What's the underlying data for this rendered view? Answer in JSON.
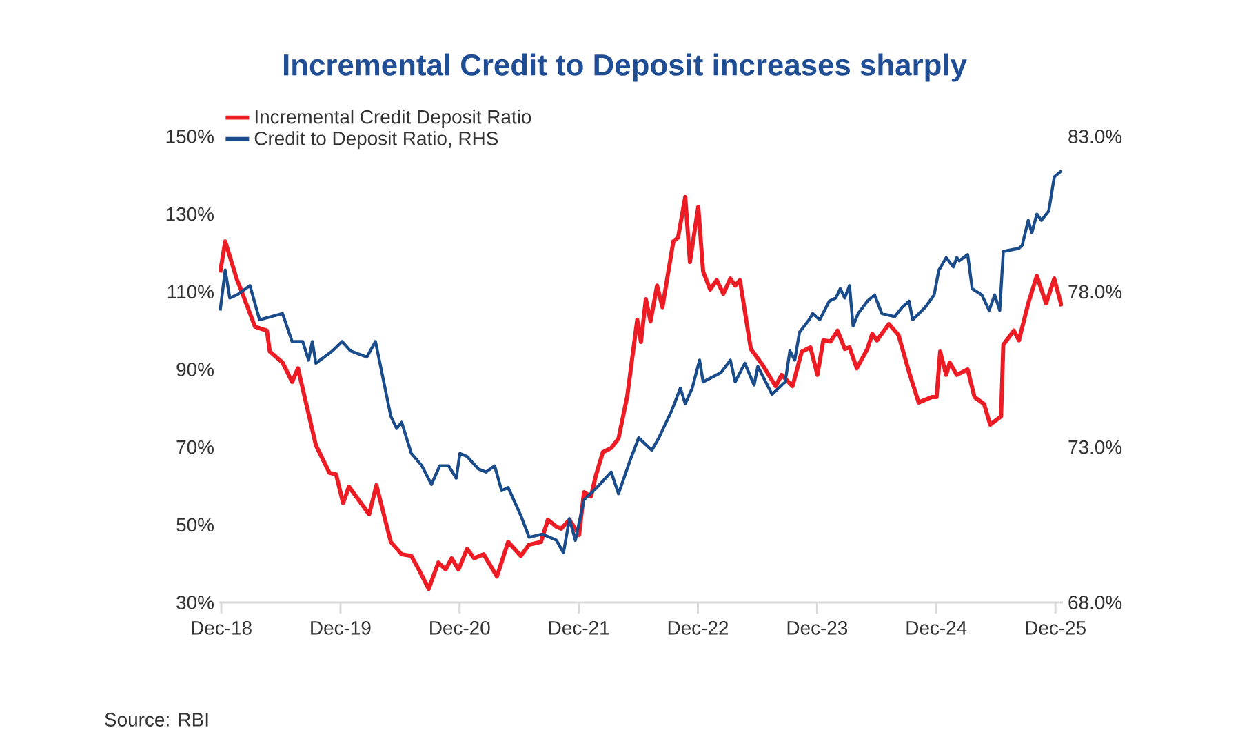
{
  "chart_data": {
    "type": "line",
    "title": "Incremental Credit to Deposit increases sharply",
    "annotations": [
      "Source: RBI"
    ],
    "legend": "top left",
    "xlim": [
      "2018-11-25",
      "2025-12-24"
    ],
    "xticks": [
      {
        "value": "2018-12",
        "label": "Dec-18"
      },
      {
        "value": "2019-12",
        "label": "Dec-19"
      },
      {
        "value": "2020-12",
        "label": "Dec-20"
      },
      {
        "value": "2021-12",
        "label": "Dec-21"
      },
      {
        "value": "2022-12",
        "label": "Dec-22"
      },
      {
        "value": "2023-12",
        "label": "Dec-23"
      },
      {
        "value": "2024-12",
        "label": "Dec-24"
      },
      {
        "value": "2025-12",
        "label": "Dec-25"
      }
    ],
    "ylim": [
      30,
      150
    ],
    "yticks": [
      {
        "value": 30,
        "label": "30%"
      },
      {
        "value": 50,
        "label": "50%"
      },
      {
        "value": 70,
        "label": "70%"
      },
      {
        "value": 90,
        "label": "90%"
      },
      {
        "value": 110,
        "label": "110%"
      },
      {
        "value": 130,
        "label": "130%"
      },
      {
        "value": 150,
        "label": "150%"
      }
    ],
    "y2lim": [
      68,
      83
    ],
    "y2ticks": [
      {
        "value": 68,
        "label": "68.0%"
      },
      {
        "value": 73,
        "label": "73.0%"
      },
      {
        "value": 78,
        "label": "78.0%"
      },
      {
        "value": 83,
        "label": "83.0%"
      }
    ],
    "series": [
      {
        "name": "Incremental Credit Deposit Ratio",
        "color": "#ed1c24",
        "x": [
          "2018-11-28",
          "2018-12-13",
          "2019-01-19",
          "2019-01-26",
          "2019-03-13",
          "2019-04-19",
          "2019-04-28",
          "2019-06-06",
          "2019-07-05",
          "2019-07-23",
          "2019-08-25",
          "2019-09-17",
          "2019-10-28",
          "2019-11-18",
          "2019-12-09",
          "2019-12-27",
          "2020-02-28",
          "2020-03-20",
          "2020-05-03",
          "2020-06-06",
          "2020-07-05",
          "2020-07-28",
          "2020-08-28",
          "2020-09-27",
          "2020-10-19",
          "2020-11-07",
          "2020-11-28",
          "2020-12-24",
          "2021-01-15",
          "2021-02-14",
          "2021-03-24",
          "2021-04-28",
          "2021-06-06",
          "2021-07-01",
          "2021-08-07",
          "2021-08-28",
          "2021-09-24",
          "2021-10-08",
          "2021-11-03",
          "2021-12-02",
          "2021-12-17",
          "2022-01-08",
          "2022-01-23",
          "2022-02-14",
          "2022-03-09",
          "2022-04-01",
          "2022-04-28",
          "2022-05-28",
          "2022-06-09",
          "2022-06-24",
          "2022-07-08",
          "2022-07-28",
          "2022-08-14",
          "2022-09-17",
          "2022-10-01",
          "2022-10-23",
          "2022-11-07",
          "2022-12-02",
          "2022-12-17",
          "2023-01-08",
          "2023-01-28",
          "2023-02-18",
          "2023-03-09",
          "2023-03-24",
          "2023-04-08",
          "2023-05-11",
          "2023-06-17",
          "2023-07-26",
          "2023-08-14",
          "2023-09-17",
          "2023-10-15",
          "2023-11-11",
          "2023-12-02",
          "2023-12-20",
          "2024-01-12",
          "2024-02-03",
          "2024-02-25",
          "2024-03-09",
          "2024-04-01",
          "2024-05-03",
          "2024-05-18",
          "2024-06-02",
          "2024-07-08",
          "2024-08-07",
          "2024-09-09",
          "2024-10-08",
          "2024-11-18",
          "2024-12-02",
          "2024-12-13",
          "2025-01-01",
          "2025-01-12",
          "2025-02-03",
          "2025-03-06",
          "2025-03-27",
          "2025-04-26",
          "2025-05-14",
          "2025-06-17",
          "2025-06-24",
          "2025-07-26",
          "2025-08-11",
          "2025-09-09",
          "2025-10-05",
          "2025-11-03",
          "2025-11-28",
          "2025-12-20"
        ],
        "values": [
          115,
          123,
          113,
          111.6,
          101,
          100,
          94.6,
          91.8,
          86.8,
          90.3,
          78.6,
          70.5,
          63.4,
          63,
          55.6,
          59.8,
          52.7,
          60.2,
          45.6,
          42.4,
          42,
          38.5,
          33.5,
          40.3,
          38.5,
          41.4,
          38.5,
          43.8,
          41.4,
          42.4,
          36.7,
          45.6,
          42,
          44.9,
          45.6,
          51.3,
          49.5,
          49,
          51.3,
          47.4,
          58.4,
          57.3,
          62.7,
          68.7,
          69.8,
          72.2,
          83.2,
          102.8,
          97.1,
          108.1,
          102.4,
          111.6,
          106,
          123,
          124,
          134.4,
          117.7,
          131.9,
          115.2,
          110.6,
          113,
          109.5,
          113.4,
          111.6,
          113,
          95.3,
          91.1,
          85.7,
          88.6,
          85.7,
          94.6,
          95.7,
          88.6,
          97.5,
          97.2,
          100,
          95.3,
          95.7,
          90.3,
          95.3,
          99.2,
          97.5,
          101.7,
          98.9,
          89.3,
          81.5,
          82.9,
          82.9,
          94.6,
          88.6,
          91.8,
          88.6,
          90,
          82.9,
          81.1,
          75.8,
          77.9,
          96.4,
          100,
          97.5,
          107,
          114.1,
          107,
          113.4,
          106.3
        ]
      },
      {
        "name": "Credit to Deposit Ratio, RHS",
        "color": "#1a4c8b",
        "axis": "y2",
        "x": [
          "2018-11-28",
          "2018-12-13",
          "2018-12-27",
          "2019-01-19",
          "2019-02-28",
          "2019-03-27",
          "2019-06-06",
          "2019-07-05",
          "2019-08-07",
          "2019-08-25",
          "2019-09-06",
          "2019-09-17",
          "2019-11-07",
          "2019-12-06",
          "2020-01-01",
          "2020-02-21",
          "2020-03-17",
          "2020-04-12",
          "2020-05-03",
          "2020-05-21",
          "2020-06-06",
          "2020-07-05",
          "2020-08-07",
          "2020-09-06",
          "2020-10-01",
          "2020-10-28",
          "2020-11-21",
          "2020-12-02",
          "2020-12-24",
          "2021-01-28",
          "2021-02-21",
          "2021-03-17",
          "2021-04-08",
          "2021-04-28",
          "2021-06-06",
          "2021-07-01",
          "2021-08-11",
          "2021-09-24",
          "2021-10-15",
          "2021-11-03",
          "2021-11-21",
          "2021-12-17",
          "2022-01-26",
          "2022-03-09",
          "2022-04-01",
          "2022-05-07",
          "2022-06-02",
          "2022-07-12",
          "2022-08-03",
          "2022-09-13",
          "2022-10-08",
          "2022-10-23",
          "2022-11-14",
          "2022-12-06",
          "2022-12-17",
          "2023-02-11",
          "2023-03-09",
          "2023-03-24",
          "2023-04-23",
          "2023-05-21",
          "2023-06-02",
          "2023-07-15",
          "2023-08-25",
          "2023-09-09",
          "2023-09-24",
          "2023-10-08",
          "2023-11-07",
          "2023-11-18",
          "2023-12-09",
          "2024-01-08",
          "2024-01-28",
          "2024-02-11",
          "2024-02-25",
          "2024-03-09",
          "2024-03-20",
          "2024-04-05",
          "2024-05-03",
          "2024-05-25",
          "2024-06-17",
          "2024-07-26",
          "2024-08-18",
          "2024-09-09",
          "2024-09-20",
          "2024-10-28",
          "2024-11-25",
          "2024-12-09",
          "2025-01-01",
          "2025-01-23",
          "2025-02-03",
          "2025-02-11",
          "2025-03-06",
          "2025-03-20",
          "2025-04-19",
          "2025-05-11",
          "2025-05-28",
          "2025-06-13",
          "2025-06-24",
          "2025-08-11",
          "2025-08-21",
          "2025-09-09",
          "2025-09-20",
          "2025-10-05",
          "2025-10-19",
          "2025-11-11",
          "2025-11-28",
          "2025-12-20"
        ],
        "values": [
          77.4,
          78.7,
          77.8,
          77.9,
          78.2,
          77.1,
          77.3,
          76.4,
          76.4,
          75.8,
          76.4,
          75.7,
          76.1,
          76.4,
          76.1,
          75.9,
          76.4,
          75.1,
          74,
          73.6,
          73.8,
          72.8,
          72.4,
          71.8,
          72.4,
          72.4,
          72,
          72.8,
          72.7,
          72.3,
          72.2,
          72.4,
          71.6,
          71.7,
          70.8,
          70.1,
          70.2,
          70,
          69.6,
          70.7,
          70,
          71.3,
          71.7,
          72.2,
          71.5,
          72.6,
          73.3,
          72.9,
          73.3,
          74.2,
          74.9,
          74.4,
          74.9,
          75.8,
          75.1,
          75.4,
          75.8,
          75.1,
          75.7,
          75,
          75.6,
          74.7,
          75.1,
          76.1,
          75.8,
          76.7,
          77.1,
          77.3,
          77.1,
          77.7,
          77.8,
          78.1,
          77.8,
          78.2,
          76.9,
          77.3,
          77.7,
          77.9,
          77.3,
          77.2,
          77.5,
          77.7,
          77.1,
          77.5,
          77.9,
          78.7,
          79.1,
          78.8,
          79.1,
          79,
          79.2,
          78.1,
          77.9,
          77.4,
          77.9,
          77.4,
          79.3,
          79.4,
          79.5,
          80.3,
          79.9,
          80.5,
          80.3,
          80.6,
          81.7,
          81.9
        ]
      }
    ]
  }
}
